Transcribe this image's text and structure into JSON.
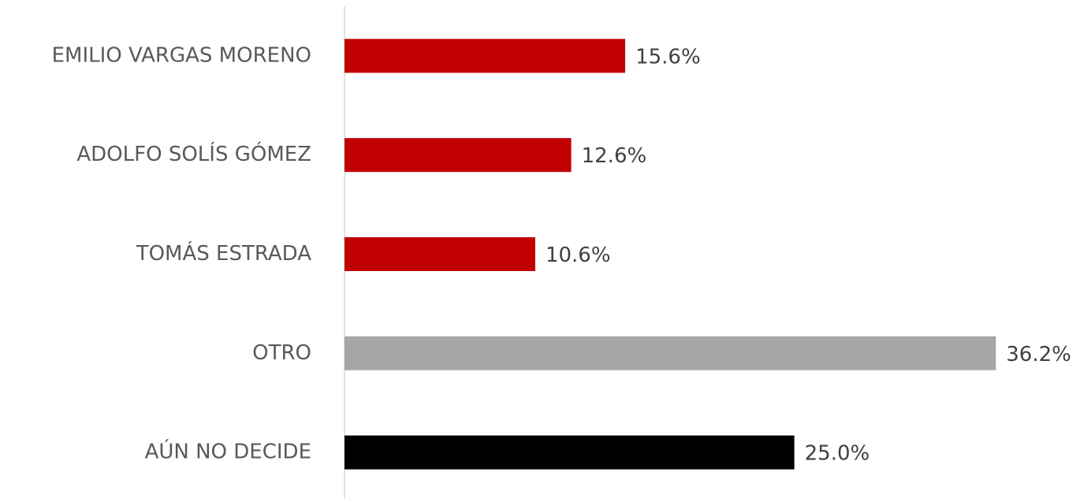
{
  "chart_data": {
    "type": "hbar",
    "categories": [
      "EMILIO VARGAS MORENO",
      "ADOLFO SOLÍS GÓMEZ",
      "TOMÁS ESTRADA",
      "OTRO",
      "AÚN NO DECIDE"
    ],
    "values": [
      15.6,
      12.6,
      10.6,
      36.2,
      25.0
    ],
    "value_labels": [
      "15.6%",
      "12.6%",
      "10.6%",
      "36.2%",
      "25.0%"
    ],
    "colors": [
      "#c00000",
      "#c00000",
      "#c00000",
      "#a6a6a6",
      "#000000"
    ],
    "xlim": [
      0,
      40
    ]
  }
}
